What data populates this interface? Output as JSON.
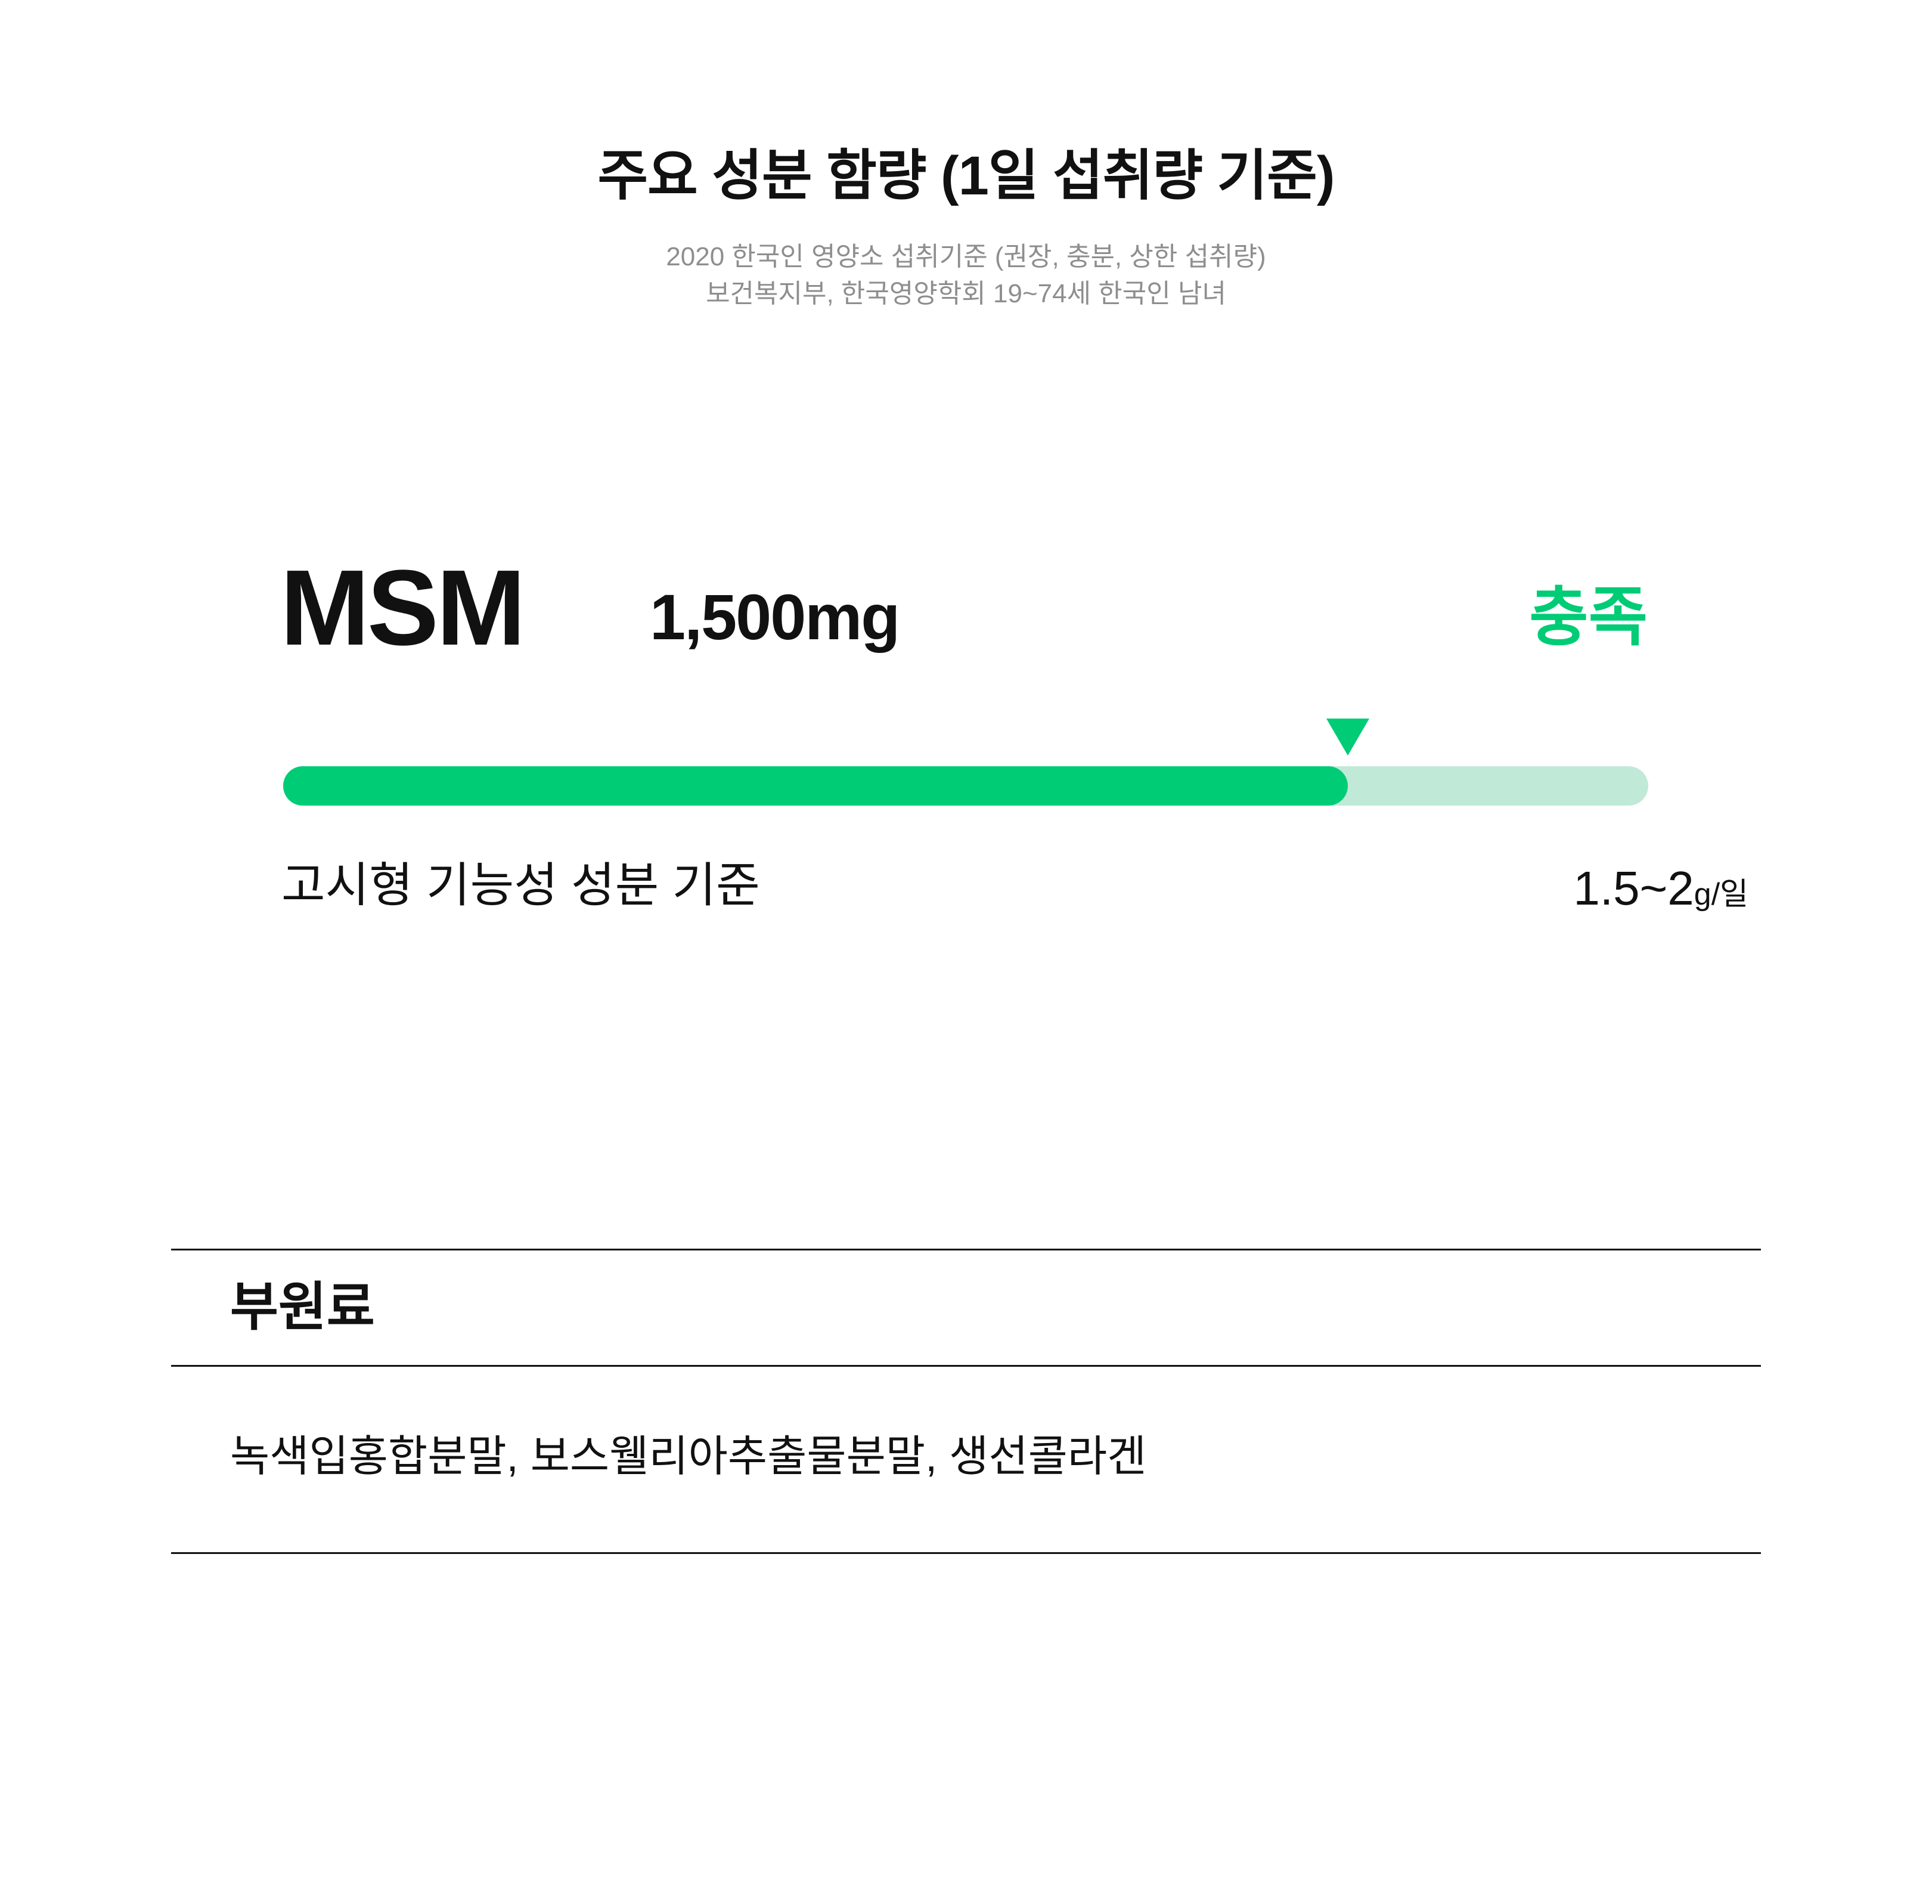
{
  "header": {
    "title": "주요 성분 함량 (1일 섭취량 기준)",
    "subtitle_line1": "2020 한국인 영양소 섭취기준 (권장, 충분, 상한 섭취량)",
    "subtitle_line2": "보건복지부, 한국영양학회  19~74세 한국인 남녀"
  },
  "ingredient": {
    "name": "MSM",
    "amount": "1,500mg",
    "status": "충족",
    "status_color": "#00cc76",
    "progress_fraction": 0.78,
    "criteria_label": "고시형 기능성 성분 기준",
    "criteria_range": "1.5~2",
    "criteria_unit": "g/일"
  },
  "sub_ingredients": {
    "title": "부원료",
    "content": "녹색입홍합분말, 보스웰리아추출물분말, 생선콜라겐"
  },
  "colors": {
    "accent": "#00cc76",
    "track": "#c1e9d7",
    "text": "#111111",
    "muted": "#8e8e8e"
  }
}
